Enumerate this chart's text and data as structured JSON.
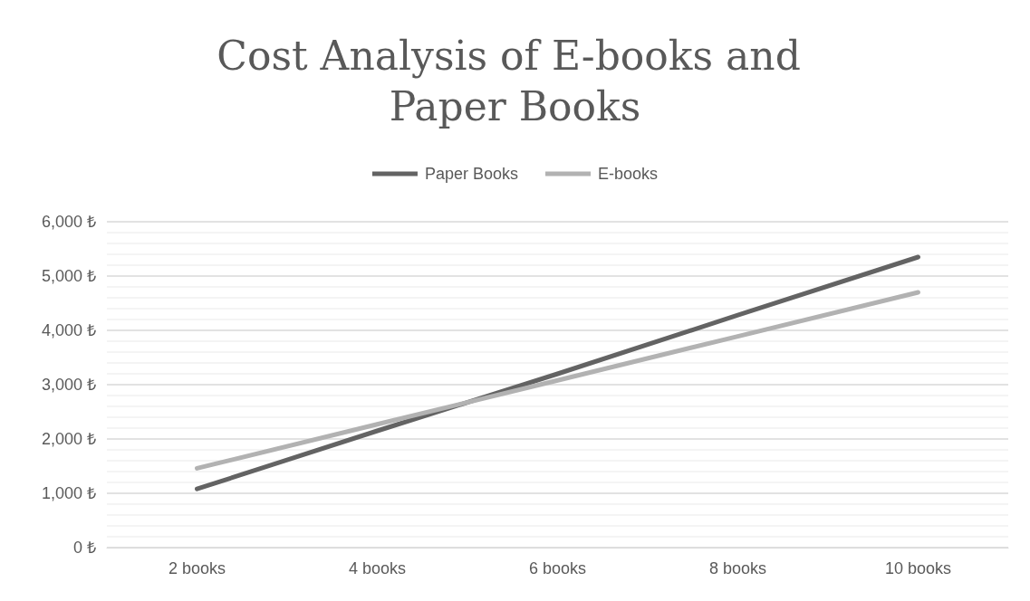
{
  "chart_data": {
    "type": "line",
    "title": "Cost Analysis of E-books and Paper Books",
    "categories": [
      "2 books",
      "4 books",
      "6 books",
      "8 books",
      "10 books"
    ],
    "series": [
      {
        "name": "Paper Books",
        "color": "#636363",
        "values": [
          1080,
          2150,
          3200,
          4280,
          5350
        ]
      },
      {
        "name": "E-books",
        "color": "#b2b2b2",
        "values": [
          1460,
          2270,
          3080,
          3890,
          4700
        ]
      }
    ],
    "ylim": [
      0,
      6000
    ],
    "yticks": [
      {
        "value": 0,
        "label": "0 ₺"
      },
      {
        "value": 1000,
        "label": "1,000 ₺"
      },
      {
        "value": 2000,
        "label": "2,000 ₺"
      },
      {
        "value": 3000,
        "label": "3,000 ₺"
      },
      {
        "value": 4000,
        "label": "4,000 ₺"
      },
      {
        "value": 5000,
        "label": "5,000 ₺"
      },
      {
        "value": 6000,
        "label": "6,000 ₺"
      }
    ],
    "grid": "y",
    "legend": "top",
    "marker": "none",
    "line_style": "solid"
  }
}
